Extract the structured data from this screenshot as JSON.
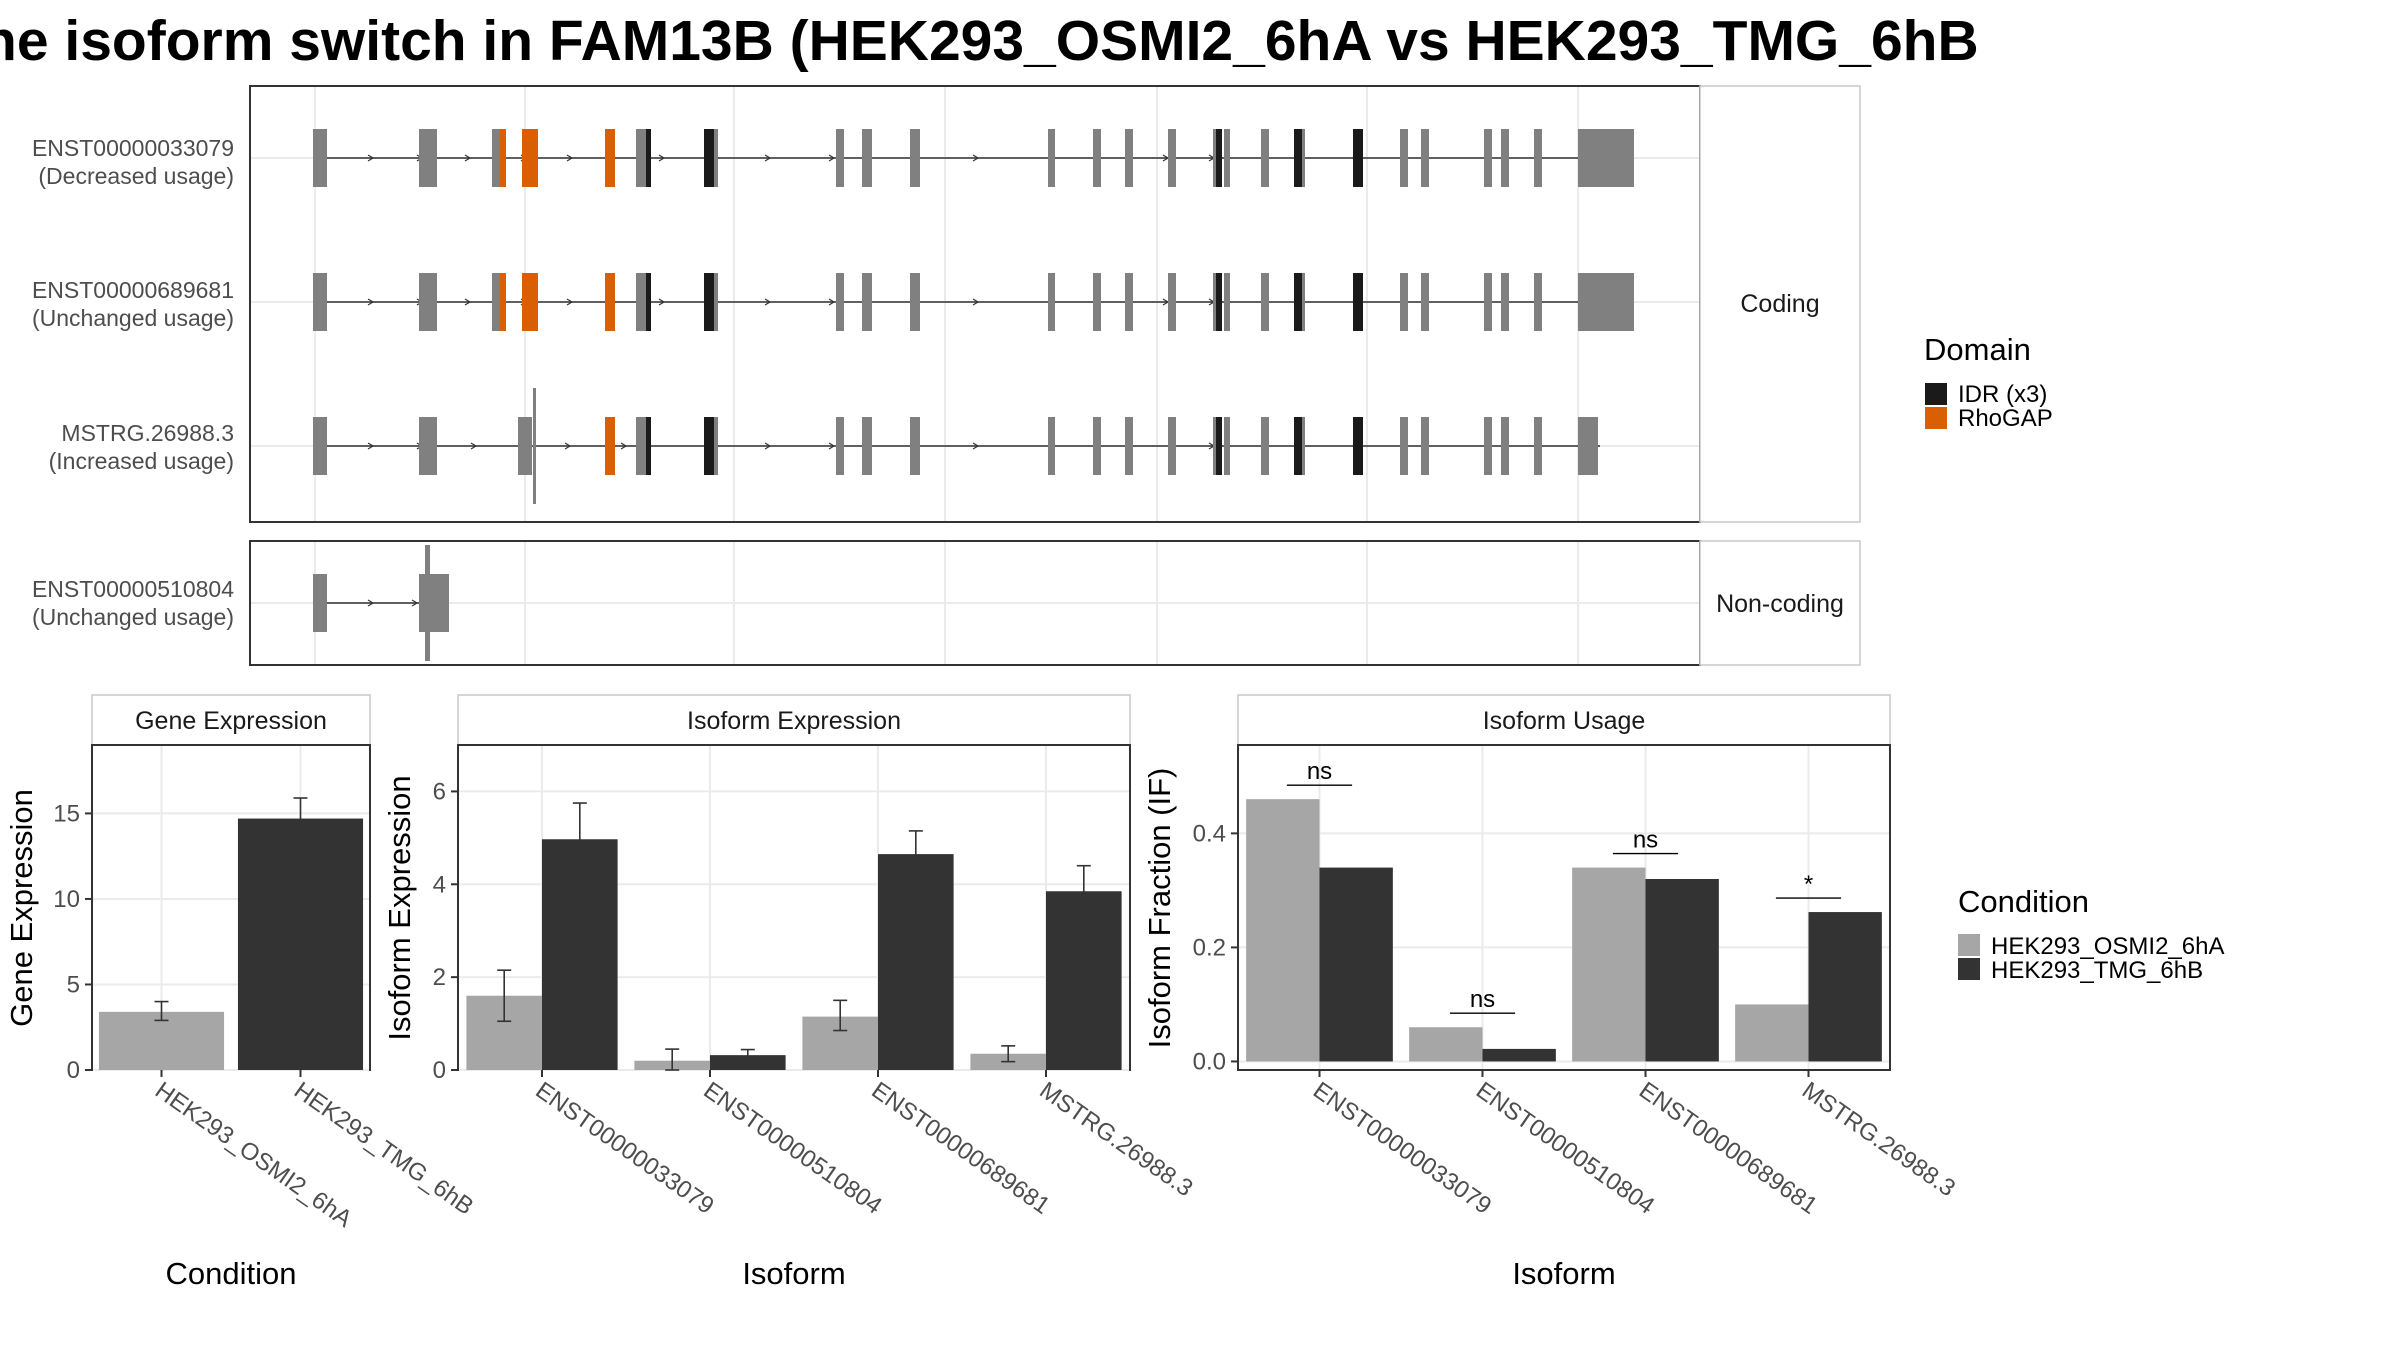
{
  "title": "he isoform switch in FAM13B (HEK293_OSMI2_6hA vs HEK293_TMG_6hB",
  "colors": {
    "exon": "#808080",
    "idr": "#1a1a1a",
    "rhogap": "#d95f02",
    "cond_a": "#a6a6a6",
    "cond_b": "#333333",
    "panel_border": "#333333",
    "grid": "#ebebeb"
  },
  "structure": {
    "groups": [
      {
        "label": "Coding",
        "transcripts": [
          {
            "id": "ENST00000033079",
            "usage": "(Decreased usage)"
          },
          {
            "id": "ENST00000689681",
            "usage": "(Unchanged usage)"
          },
          {
            "id": "MSTRG.26988.3",
            "usage": "(Increased usage)"
          }
        ]
      },
      {
        "label": "Non-coding",
        "transcripts": [
          {
            "id": "ENST00000510804",
            "usage": "(Unchanged usage)"
          }
        ]
      }
    ]
  },
  "legend_domain": {
    "title": "Domain",
    "items": [
      {
        "label": "IDR (x3)",
        "color": "#1a1a1a"
      },
      {
        "label": "RhoGAP",
        "color": "#d95f02"
      }
    ]
  },
  "legend_condition": {
    "title": "Condition",
    "items": [
      {
        "label": "HEK293_OSMI2_6hA",
        "color": "#a6a6a6"
      },
      {
        "label": "HEK293_TMG_6hB",
        "color": "#333333"
      }
    ]
  },
  "chart_data": [
    {
      "type": "bar",
      "strip": "Gene Expression",
      "xlabel": "Condition",
      "ylabel": "Gene Expression",
      "categories": [
        "HEK293_OSMI2_6hA",
        "HEK293_TMG_6hB"
      ],
      "values": [
        3.4,
        14.7
      ],
      "errors": [
        [
          2.9,
          4.0
        ],
        [
          13.4,
          15.9
        ]
      ],
      "ylim": [
        0,
        19
      ],
      "yticks": [
        0,
        5,
        10,
        15
      ]
    },
    {
      "type": "bar",
      "strip": "Isoform Expression",
      "xlabel": "Isoform",
      "ylabel": "Isoform Expression",
      "categories": [
        "ENST00000033079",
        "ENST00000510804",
        "ENST00000689681",
        "MSTRG.26988.3"
      ],
      "series": [
        {
          "name": "HEK293_OSMI2_6hA",
          "values": [
            1.6,
            0.2,
            1.15,
            0.35
          ],
          "errors": [
            [
              1.05,
              2.15
            ],
            [
              0.0,
              0.45
            ],
            [
              0.85,
              1.5
            ],
            [
              0.18,
              0.52
            ]
          ]
        },
        {
          "name": "HEK293_TMG_6hB",
          "values": [
            4.97,
            0.32,
            4.65,
            3.85
          ],
          "errors": [
            [
              4.25,
              5.75
            ],
            [
              0.2,
              0.44
            ],
            [
              4.2,
              5.15
            ],
            [
              3.25,
              4.4
            ]
          ]
        }
      ],
      "ylim": [
        0,
        7
      ],
      "yticks": [
        0,
        2,
        4,
        6
      ]
    },
    {
      "type": "bar",
      "strip": "Isoform Usage",
      "xlabel": "Isoform",
      "ylabel": "Isoform Fraction (IF)",
      "categories": [
        "ENST00000033079",
        "ENST00000510804",
        "ENST00000689681",
        "MSTRG.26988.3"
      ],
      "series": [
        {
          "name": "HEK293_OSMI2_6hA",
          "values": [
            0.46,
            0.06,
            0.34,
            0.1
          ]
        },
        {
          "name": "HEK293_TMG_6hB",
          "values": [
            0.34,
            0.022,
            0.32,
            0.262
          ]
        }
      ],
      "significance": [
        "ns",
        "ns",
        "ns",
        "*"
      ],
      "ylim": [
        -0.015,
        0.555
      ],
      "yticks": [
        "0.0",
        "0.2",
        "0.4"
      ]
    }
  ]
}
